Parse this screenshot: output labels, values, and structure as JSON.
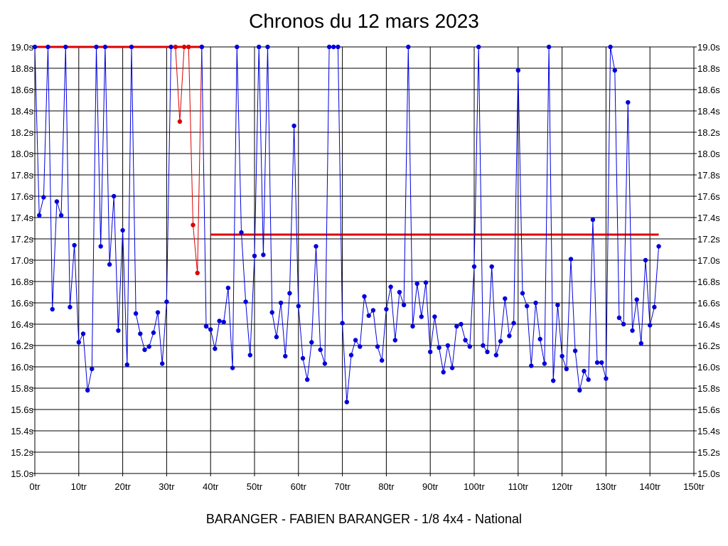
{
  "chart_data": {
    "type": "line",
    "title": "Chronos du 12 mars 2023",
    "subtitle": "BARANGER - FABIEN BARANGER - 1/8 4x4 - National",
    "xlim": [
      0,
      150
    ],
    "ylim": [
      15.0,
      19.0
    ],
    "x_tick_values": [
      0,
      10,
      20,
      30,
      40,
      50,
      60,
      70,
      80,
      90,
      100,
      110,
      120,
      130,
      140,
      150
    ],
    "x_tick_labels": [
      "0tr",
      "10tr",
      "20tr",
      "30tr",
      "40tr",
      "50tr",
      "60tr",
      "70tr",
      "80tr",
      "90tr",
      "100tr",
      "110tr",
      "120tr",
      "130tr",
      "140tr",
      "150tr"
    ],
    "y_tick_values": [
      15.0,
      15.2,
      15.4,
      15.6,
      15.8,
      16.0,
      16.2,
      16.4,
      16.6,
      16.8,
      17.0,
      17.2,
      17.4,
      17.6,
      17.8,
      18.0,
      18.2,
      18.4,
      18.6,
      18.8,
      19.0
    ],
    "y_tick_labels": [
      "15.0s",
      "15.2s",
      "15.4s",
      "15.6s",
      "15.8s",
      "16.0s",
      "16.2s",
      "16.4s",
      "16.6s",
      "16.8s",
      "17.0s",
      "17.2s",
      "17.4s",
      "17.6s",
      "17.8s",
      "18.0s",
      "18.2s",
      "18.4s",
      "18.6s",
      "18.8s",
      "19.0s"
    ],
    "grid": true,
    "series": [
      {
        "color": "#0000dd",
        "points": [
          [
            0,
            19.0
          ],
          [
            1,
            17.42
          ],
          [
            2,
            17.59
          ],
          [
            3,
            19.0
          ],
          [
            4,
            16.54
          ],
          [
            5,
            17.55
          ],
          [
            6,
            17.42
          ],
          [
            7,
            19.0
          ],
          [
            8,
            16.56
          ],
          [
            9,
            17.14
          ],
          [
            10,
            16.23
          ],
          [
            11,
            16.31
          ],
          [
            12,
            15.78
          ],
          [
            13,
            15.98
          ],
          [
            14,
            19.0
          ],
          [
            15,
            17.13
          ],
          [
            16,
            19.0
          ],
          [
            17,
            16.96
          ],
          [
            18,
            17.6
          ],
          [
            19,
            16.34
          ],
          [
            20,
            17.28
          ],
          [
            21,
            16.02
          ],
          [
            22,
            19.0
          ],
          [
            23,
            16.5
          ],
          [
            24,
            16.31
          ],
          [
            25,
            16.16
          ],
          [
            26,
            16.19
          ],
          [
            27,
            16.32
          ],
          [
            28,
            16.51
          ],
          [
            29,
            16.03
          ],
          [
            30,
            16.61
          ],
          [
            31,
            19.0
          ]
        ]
      },
      {
        "color": "#0000dd",
        "points": [
          [
            39,
            16.38
          ],
          [
            40,
            16.35
          ],
          [
            41,
            16.17
          ],
          [
            42,
            16.43
          ],
          [
            43,
            16.42
          ],
          [
            44,
            16.74
          ],
          [
            45,
            15.99
          ],
          [
            46,
            19.0
          ],
          [
            47,
            17.26
          ],
          [
            48,
            16.61
          ],
          [
            49,
            16.11
          ],
          [
            50,
            17.04
          ],
          [
            51,
            19.0
          ],
          [
            52,
            17.05
          ],
          [
            53,
            19.0
          ],
          [
            54,
            16.51
          ],
          [
            55,
            16.28
          ],
          [
            56,
            16.6
          ],
          [
            57,
            16.1
          ],
          [
            58,
            16.69
          ],
          [
            59,
            18.26
          ],
          [
            60,
            16.57
          ],
          [
            61,
            16.08
          ],
          [
            62,
            15.88
          ],
          [
            63,
            16.23
          ],
          [
            64,
            17.13
          ],
          [
            65,
            16.16
          ],
          [
            66,
            16.03
          ],
          [
            67,
            19.0
          ],
          [
            68,
            19.0
          ],
          [
            69,
            19.0
          ],
          [
            70,
            16.41
          ],
          [
            71,
            15.67
          ],
          [
            72,
            16.11
          ],
          [
            73,
            16.25
          ],
          [
            74,
            16.19
          ],
          [
            75,
            16.66
          ],
          [
            76,
            16.48
          ],
          [
            77,
            16.53
          ],
          [
            78,
            16.19
          ],
          [
            79,
            16.06
          ],
          [
            80,
            16.54
          ],
          [
            81,
            16.75
          ],
          [
            82,
            16.25
          ],
          [
            83,
            16.7
          ],
          [
            84,
            16.58
          ],
          [
            85,
            19.0
          ],
          [
            86,
            16.38
          ],
          [
            87,
            16.78
          ],
          [
            88,
            16.47
          ],
          [
            89,
            16.79
          ],
          [
            90,
            16.14
          ],
          [
            91,
            16.47
          ],
          [
            92,
            16.18
          ],
          [
            93,
            15.95
          ],
          [
            94,
            16.2
          ],
          [
            95,
            15.99
          ],
          [
            96,
            16.38
          ],
          [
            97,
            16.4
          ],
          [
            98,
            16.25
          ],
          [
            99,
            16.19
          ],
          [
            100,
            16.94
          ],
          [
            101,
            19.0
          ],
          [
            102,
            16.2
          ],
          [
            103,
            16.14
          ],
          [
            104,
            16.94
          ],
          [
            105,
            16.11
          ],
          [
            106,
            16.24
          ],
          [
            107,
            16.64
          ],
          [
            108,
            16.29
          ],
          [
            109,
            16.41
          ],
          [
            110,
            18.78
          ],
          [
            111,
            16.69
          ],
          [
            112,
            16.57
          ],
          [
            113,
            16.01
          ],
          [
            114,
            16.6
          ],
          [
            115,
            16.26
          ],
          [
            116,
            16.03
          ],
          [
            117,
            19.0
          ],
          [
            118,
            15.87
          ],
          [
            119,
            16.58
          ],
          [
            120,
            16.1
          ],
          [
            121,
            15.98
          ],
          [
            122,
            17.01
          ],
          [
            123,
            16.15
          ],
          [
            124,
            15.78
          ],
          [
            125,
            15.96
          ],
          [
            126,
            15.88
          ],
          [
            127,
            17.38
          ],
          [
            128,
            16.04
          ],
          [
            129,
            16.04
          ],
          [
            130,
            15.89
          ],
          [
            131,
            19.0
          ],
          [
            132,
            18.78
          ],
          [
            133,
            16.46
          ],
          [
            134,
            16.4
          ],
          [
            135,
            18.48
          ],
          [
            136,
            16.34
          ],
          [
            137,
            16.63
          ],
          [
            138,
            16.22
          ],
          [
            139,
            17.0
          ],
          [
            140,
            16.39
          ],
          [
            141,
            16.56
          ],
          [
            142,
            17.13
          ]
        ]
      },
      {
        "color": "#dd0000",
        "points": [
          [
            32,
            19.0
          ],
          [
            33,
            18.3
          ],
          [
            34,
            19.0
          ],
          [
            35,
            19.0
          ],
          [
            36,
            17.33
          ],
          [
            37,
            16.88
          ],
          [
            38,
            19.0
          ]
        ]
      },
      {
        "color": "#0000dd",
        "points": [
          [
            38,
            19.0
          ],
          [
            39,
            16.38
          ]
        ]
      }
    ],
    "reference_lines": [
      {
        "color": "#dd0000",
        "x": [
          0,
          38
        ],
        "y": 19.0
      },
      {
        "color": "#dd0000",
        "x": [
          40,
          142
        ],
        "y": 17.24
      }
    ]
  }
}
